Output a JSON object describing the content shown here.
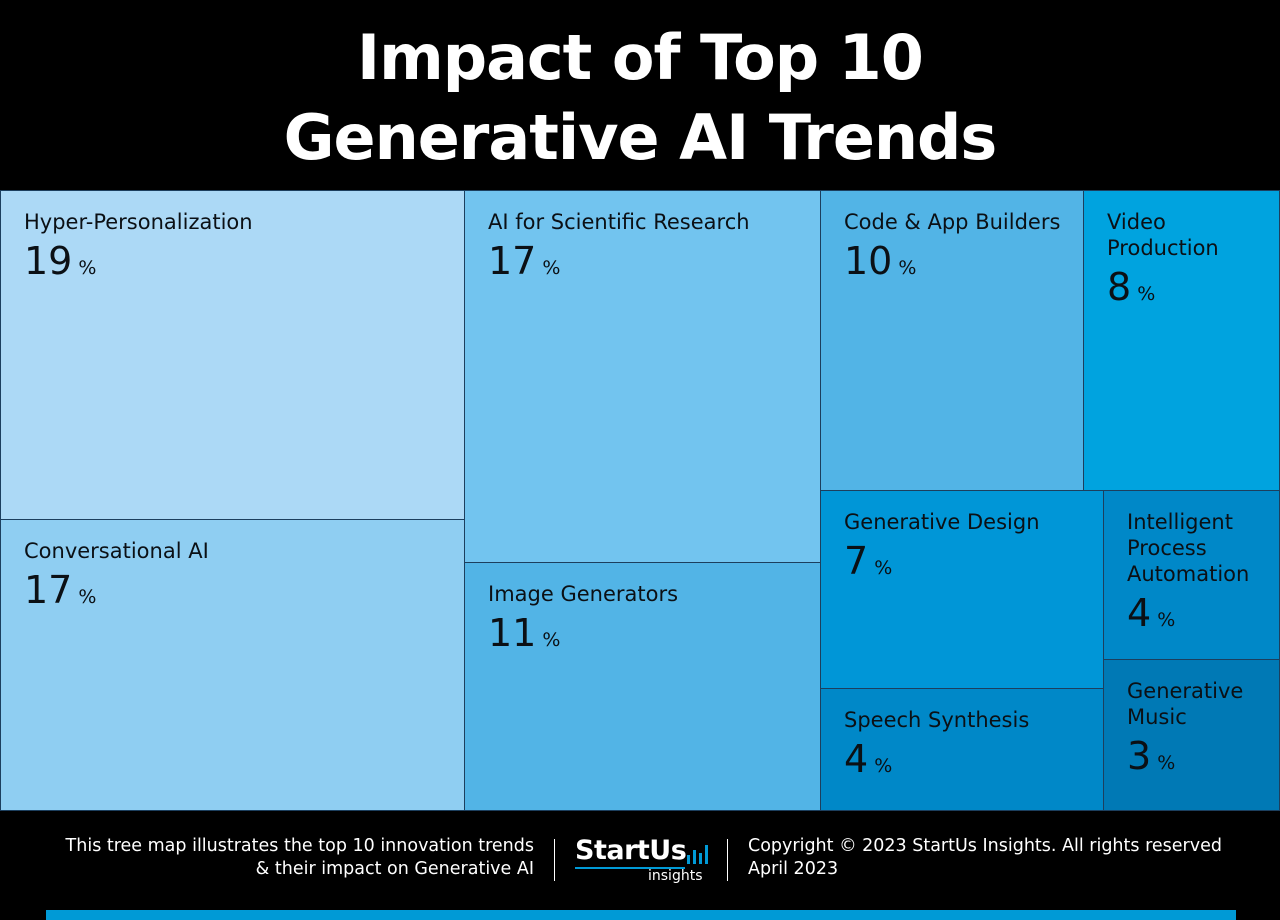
{
  "title": {
    "line1": "Impact of Top 10",
    "line2": "Generative AI Trends"
  },
  "chart_data": {
    "type": "treemap",
    "unit": "%",
    "items": [
      {
        "label": "Hyper-Personalization",
        "value": 19,
        "color": "#acd9f6"
      },
      {
        "label": "Conversational AI",
        "value": 17,
        "color": "#8fcef2"
      },
      {
        "label": "AI for Scientific Research",
        "value": 17,
        "color": "#72c4ef"
      },
      {
        "label": "Image Generators",
        "value": 11,
        "color": "#52b4e6"
      },
      {
        "label": "Code & App Builders",
        "value": 10,
        "color": "#52b4e6"
      },
      {
        "label": "Video Production",
        "value": 8,
        "color": "#00a3df"
      },
      {
        "label": "Generative Design",
        "value": 7,
        "color": "#0096d7"
      },
      {
        "label": "Speech Synthesis",
        "value": 4,
        "color": "#0088c8"
      },
      {
        "label": "Intelligent Process Automation",
        "value": 4,
        "color": "#0088c8"
      },
      {
        "label": "Generative Music",
        "value": 3,
        "color": "#0079b5"
      }
    ]
  },
  "footer": {
    "description_line1": "This tree map illustrates the top 10 innovation trends",
    "description_line2": "& their impact on Generative AI",
    "brand_name": "StartUs",
    "brand_sub": "insights",
    "copyright": "Copyright © 2023 StartUs Insights. All rights reserved",
    "date": "April 2023",
    "accent_color": "#009ad6"
  }
}
